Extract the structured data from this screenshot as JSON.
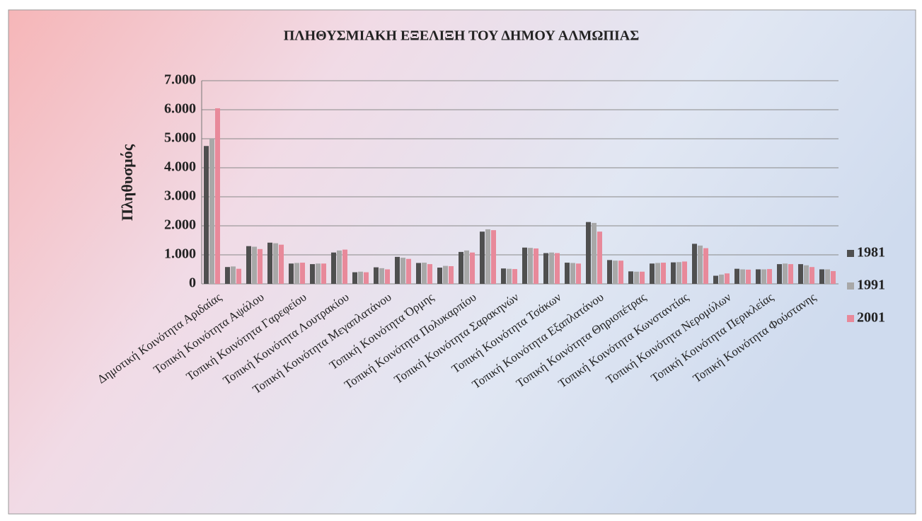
{
  "chart_data": {
    "type": "bar",
    "title": "ΠΛΗΘΥΣΜΙΑΚΗ ΕΞΕΛΙΞΗ ΤΟΥ ΔΗΜΟΥ ΑΛΜΩΠΙΑΣ",
    "y_label": "Πληθυσμός",
    "categories": [
      "Δημοτική Κοινότητα Αριδαίας",
      null,
      "Τοπική Κοινότητα Αψάλου",
      null,
      "Τοπική Κοινότητα Γαρεφείου",
      null,
      "Τοπική Κοινότητα Λουτρακίου",
      null,
      "Τοπική Κοινότητα Μεγαπλατάνου",
      null,
      "Τοπική Κοινότητα Όρμης",
      null,
      "Τοπική Κοινότητα Πολυκαρπίου",
      null,
      "Τοπική Κοινότητα Σαρακηνών",
      null,
      "Τοπική Κοινότητα Τσάκων",
      null,
      "Τοπική Κοινότητα Εξαπλατάνου",
      null,
      "Τοπική Κοινότητα Θηριοπέτρας",
      null,
      "Τοπική Κοινότητα Κωνσταντίας",
      null,
      "Τοπική Κοινότητα Νερομύλων",
      null,
      "Τοπική Κοινότητα Περικλείας",
      null,
      "Τοπική Κοινότητα Φούστανης",
      null
    ],
    "series": [
      {
        "name": "1981",
        "color": "#4f4f4f",
        "values": [
          4750,
          580,
          1300,
          1420,
          700,
          680,
          1080,
          400,
          570,
          930,
          720,
          560,
          1100,
          1800,
          530,
          1250,
          1060,
          730,
          2130,
          820,
          430,
          700,
          740,
          1380,
          280,
          520,
          500,
          680,
          680,
          500
        ]
      },
      {
        "name": "1991",
        "color": "#a8a8a8",
        "values": [
          5000,
          600,
          1280,
          1400,
          720,
          700,
          1150,
          420,
          540,
          900,
          730,
          620,
          1150,
          1880,
          520,
          1240,
          1080,
          720,
          2100,
          800,
          420,
          720,
          750,
          1320,
          320,
          500,
          500,
          700,
          640,
          500
        ]
      },
      {
        "name": "2001",
        "color": "#e8899a",
        "values": [
          6050,
          520,
          1200,
          1350,
          730,
          700,
          1180,
          400,
          500,
          860,
          680,
          610,
          1080,
          1850,
          510,
          1220,
          1060,
          700,
          1800,
          800,
          420,
          730,
          770,
          1230,
          360,
          490,
          510,
          680,
          580,
          440
        ]
      }
    ],
    "ylim": [
      0,
      7000
    ],
    "yticks": [
      0,
      {
        "value": 1000,
        "label": "1.000"
      },
      {
        "value": 2000,
        "label": "2.000"
      },
      {
        "value": 3000,
        "label": "3.000"
      },
      {
        "value": 4000,
        "label": "4.000"
      },
      {
        "value": 5000,
        "label": "5.000"
      },
      {
        "value": 6000,
        "label": "6.000"
      },
      {
        "value": 7000,
        "label": "7.000"
      }
    ],
    "grid": true,
    "legend": "right"
  }
}
